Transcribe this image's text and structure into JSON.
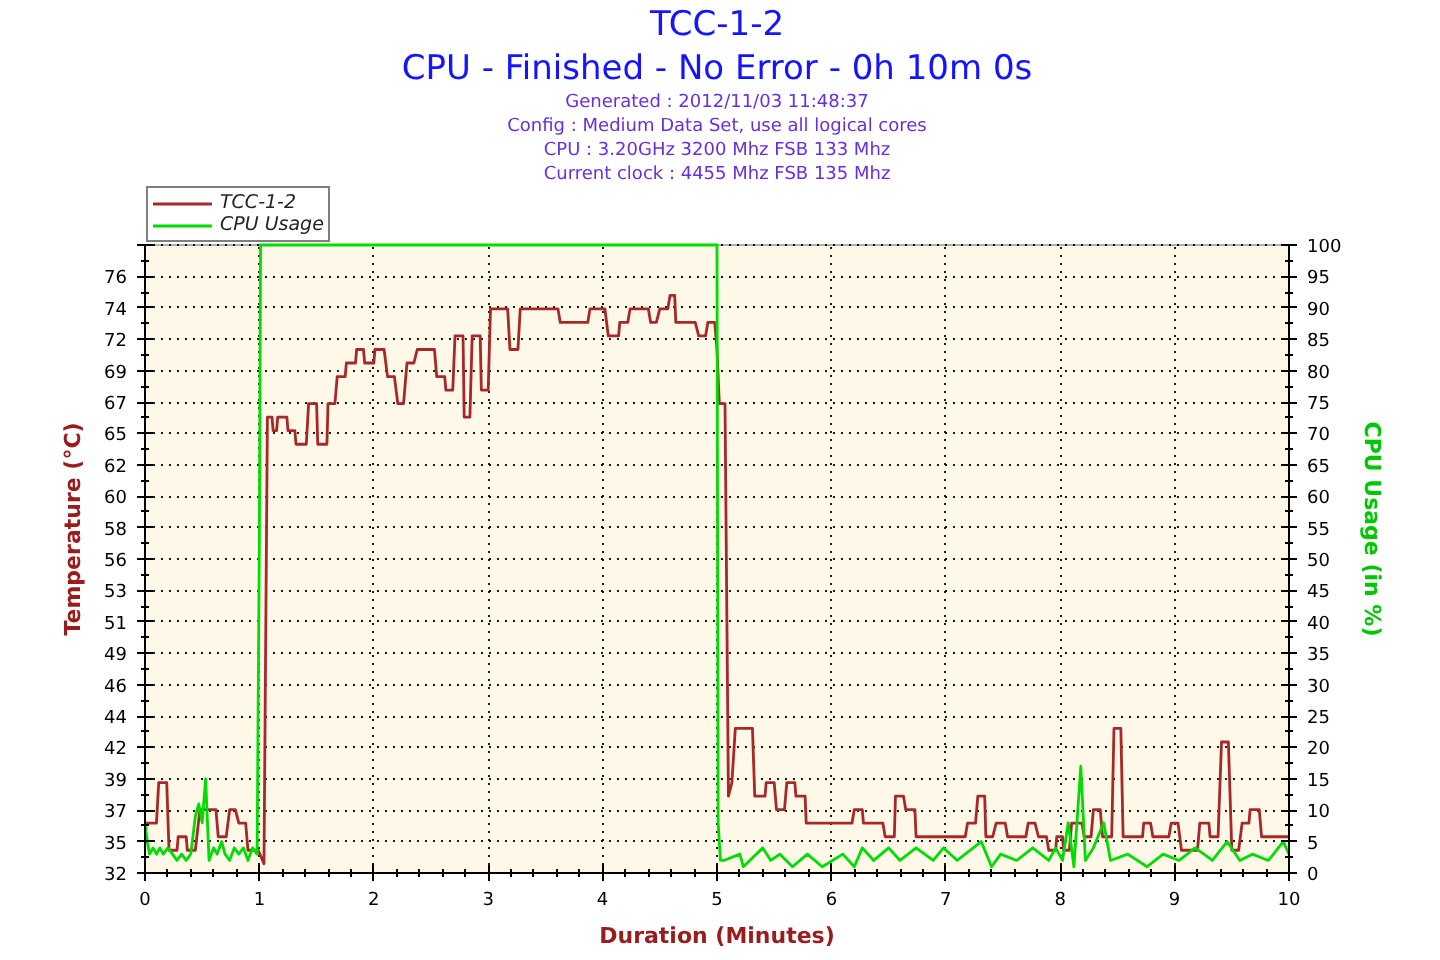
{
  "chart_data": {
    "type": "line",
    "title": "TCC-1-2",
    "subtitle": "CPU - Finished - No Error - 0h 10m 0s",
    "annotations": [
      "Generated : 2012/11/03 11:48:37",
      "Config : Medium Data Set, use all logical cores",
      "CPU : 3.20GHz 3200 Mhz FSB 133 Mhz",
      "Current clock : 4455 Mhz FSB 135 Mhz"
    ],
    "xlabel": "Duration (Minutes)",
    "ylabel": "Temperature (°C)",
    "y2label": "CPU Usage (in %)",
    "xlim": [
      0,
      10
    ],
    "xticks": [
      0,
      1,
      2,
      3,
      4,
      5,
      6,
      7,
      8,
      9,
      10
    ],
    "ylim": [
      32.32,
      78.72
    ],
    "yticks": [
      {
        "value": 32.32,
        "label": "32"
      },
      {
        "value": 34.64,
        "label": "35"
      },
      {
        "value": 36.96,
        "label": "37"
      },
      {
        "value": 39.28,
        "label": "39"
      },
      {
        "value": 41.6,
        "label": "42"
      },
      {
        "value": 43.92,
        "label": "44"
      },
      {
        "value": 46.24,
        "label": "46"
      },
      {
        "value": 48.56,
        "label": "49"
      },
      {
        "value": 50.88,
        "label": "51"
      },
      {
        "value": 53.2,
        "label": "53"
      },
      {
        "value": 55.52,
        "label": "56"
      },
      {
        "value": 57.84,
        "label": "58"
      },
      {
        "value": 60.16,
        "label": "60"
      },
      {
        "value": 62.48,
        "label": "62"
      },
      {
        "value": 64.8,
        "label": "65"
      },
      {
        "value": 67.12,
        "label": "67"
      },
      {
        "value": 69.44,
        "label": "69"
      },
      {
        "value": 71.76,
        "label": "72"
      },
      {
        "value": 74.08,
        "label": "74"
      },
      {
        "value": 76.4,
        "label": "76"
      },
      {
        "value": 78.72,
        "label": null
      }
    ],
    "y2lim": [
      0,
      100
    ],
    "y2ticks": [
      0,
      5,
      10,
      15,
      20,
      25,
      30,
      35,
      40,
      45,
      50,
      55,
      60,
      65,
      70,
      75,
      80,
      85,
      90,
      95,
      100
    ],
    "grid": true,
    "legend": "top left",
    "series": [
      {
        "name": "TCC-1-2",
        "color": "#a82828",
        "x": [
          0,
          0.1,
          0.12,
          0.19,
          0.21,
          0.28,
          0.29,
          0.36,
          0.37,
          0.44,
          0.48,
          0.62,
          0.64,
          0.71,
          0.74,
          0.79,
          0.82,
          0.88,
          0.9,
          0.99,
          1.04,
          1.07,
          1.11,
          1.12,
          1.15,
          1.16,
          1.24,
          1.25,
          1.31,
          1.32,
          1.41,
          1.43,
          1.5,
          1.51,
          1.59,
          1.6,
          1.66,
          1.68,
          1.75,
          1.76,
          1.84,
          1.85,
          1.91,
          1.92,
          2.0,
          2.01,
          2.09,
          2.12,
          2.18,
          2.21,
          2.26,
          2.29,
          2.35,
          2.38,
          2.53,
          2.55,
          2.62,
          2.63,
          2.69,
          2.71,
          2.78,
          2.79,
          2.84,
          2.86,
          2.93,
          2.94,
          3.0,
          3.02,
          3.17,
          3.19,
          3.26,
          3.28,
          3.61,
          3.63,
          3.87,
          3.89,
          4.02,
          4.05,
          4.14,
          4.15,
          4.22,
          4.24,
          4.4,
          4.42,
          4.47,
          4.5,
          4.57,
          4.59,
          4.63,
          4.64,
          4.81,
          4.84,
          4.9,
          4.92,
          4.98,
          5.0,
          5.02,
          5.07,
          5.1,
          5.13,
          5.16,
          5.31,
          5.33,
          5.42,
          5.43,
          5.5,
          5.52,
          5.59,
          5.61,
          5.68,
          5.69,
          5.77,
          5.78,
          6.18,
          6.2,
          6.27,
          6.28,
          6.45,
          6.47,
          6.55,
          6.56,
          6.63,
          6.65,
          6.73,
          6.74,
          7.17,
          7.19,
          7.26,
          7.28,
          7.34,
          7.35,
          7.41,
          7.44,
          7.52,
          7.54,
          7.7,
          7.72,
          7.78,
          7.81,
          7.88,
          7.9,
          7.96,
          7.97,
          8.02,
          8.03,
          8.08,
          8.1,
          8.19,
          8.21,
          8.27,
          8.29,
          8.35,
          8.37,
          8.45,
          8.47,
          8.53,
          8.55,
          8.72,
          8.73,
          8.79,
          8.81,
          8.95,
          8.97,
          9.03,
          9.06,
          9.2,
          9.22,
          9.3,
          9.31,
          9.38,
          9.41,
          9.47,
          9.5,
          9.56,
          9.59,
          9.65,
          9.66,
          9.74,
          9.76,
          10.0
        ],
        "values": [
          36,
          36,
          39,
          39,
          34,
          34,
          35,
          35,
          34,
          34,
          37,
          37,
          35,
          35,
          37,
          37,
          36,
          36,
          34,
          34,
          33,
          66,
          66,
          65,
          65,
          66,
          66,
          65,
          65,
          64,
          64,
          67,
          67,
          64,
          64,
          67,
          67,
          69,
          69,
          70,
          70,
          71,
          71,
          70,
          70,
          71,
          71,
          69,
          69,
          67,
          67,
          70,
          70,
          71,
          71,
          69,
          69,
          68,
          68,
          72,
          72,
          66,
          66,
          72,
          72,
          68,
          68,
          74,
          74,
          71,
          71,
          74,
          74,
          73,
          73,
          74,
          74,
          72,
          72,
          73,
          73,
          74,
          74,
          73,
          73,
          74,
          74,
          75,
          75,
          73,
          73,
          72,
          72,
          73,
          73,
          71,
          67,
          67,
          38,
          39,
          43,
          43,
          38,
          38,
          39,
          39,
          37,
          37,
          39,
          39,
          38,
          38,
          36,
          36,
          37,
          37,
          36,
          36,
          35,
          35,
          38,
          38,
          37,
          37,
          35,
          35,
          36,
          36,
          38,
          38,
          35,
          35,
          36,
          36,
          35,
          35,
          36,
          36,
          35,
          35,
          34,
          34,
          35,
          35,
          34,
          34,
          36,
          36,
          35,
          35,
          37,
          37,
          35,
          35,
          43,
          43,
          35,
          35,
          36,
          36,
          35,
          35,
          36,
          36,
          34,
          34,
          36,
          36,
          35,
          35,
          42,
          42,
          34,
          34,
          36,
          36,
          37,
          37,
          35,
          35
        ]
      },
      {
        "name": "CPU Usage",
        "color": "#00dd00",
        "axis": "y2",
        "x": [
          0,
          0.02,
          0.04,
          0.07,
          0.1,
          0.13,
          0.16,
          0.2,
          0.24,
          0.28,
          0.32,
          0.36,
          0.4,
          0.44,
          0.47,
          0.5,
          0.53,
          0.56,
          0.6,
          0.63,
          0.67,
          0.7,
          0.74,
          0.78,
          0.82,
          0.86,
          0.9,
          0.94,
          0.98,
          1.0,
          1.01,
          5.0,
          5.01,
          5.03,
          5.06,
          5.2,
          5.23,
          5.4,
          5.47,
          5.55,
          5.66,
          5.79,
          5.92,
          6.1,
          6.2,
          6.27,
          6.37,
          6.5,
          6.6,
          6.74,
          6.89,
          6.98,
          7.1,
          7.31,
          7.4,
          7.48,
          7.62,
          7.76,
          7.9,
          7.96,
          8.02,
          8.07,
          8.12,
          8.18,
          8.22,
          8.29,
          8.38,
          8.44,
          8.59,
          8.76,
          8.9,
          9.04,
          9.18,
          9.33,
          9.46,
          9.57,
          9.68,
          9.82,
          9.95,
          10.0
        ],
        "values": [
          8,
          5,
          3,
          4,
          3,
          4,
          3,
          4,
          3,
          2,
          3,
          2,
          3,
          9,
          11,
          8,
          15,
          2,
          4,
          3,
          5,
          3,
          2,
          4,
          3,
          4,
          2,
          4,
          3,
          54,
          100,
          100,
          8,
          2,
          2,
          3,
          1,
          4,
          2,
          3,
          1,
          3,
          1,
          3,
          1,
          4,
          2,
          4,
          2,
          4,
          2,
          4,
          2,
          5,
          1,
          3,
          2,
          4,
          2,
          4,
          2,
          8,
          1,
          17,
          2,
          4,
          8,
          2,
          3,
          1,
          3,
          2,
          4,
          2,
          5,
          2,
          3,
          2,
          5,
          3
        ]
      }
    ]
  }
}
